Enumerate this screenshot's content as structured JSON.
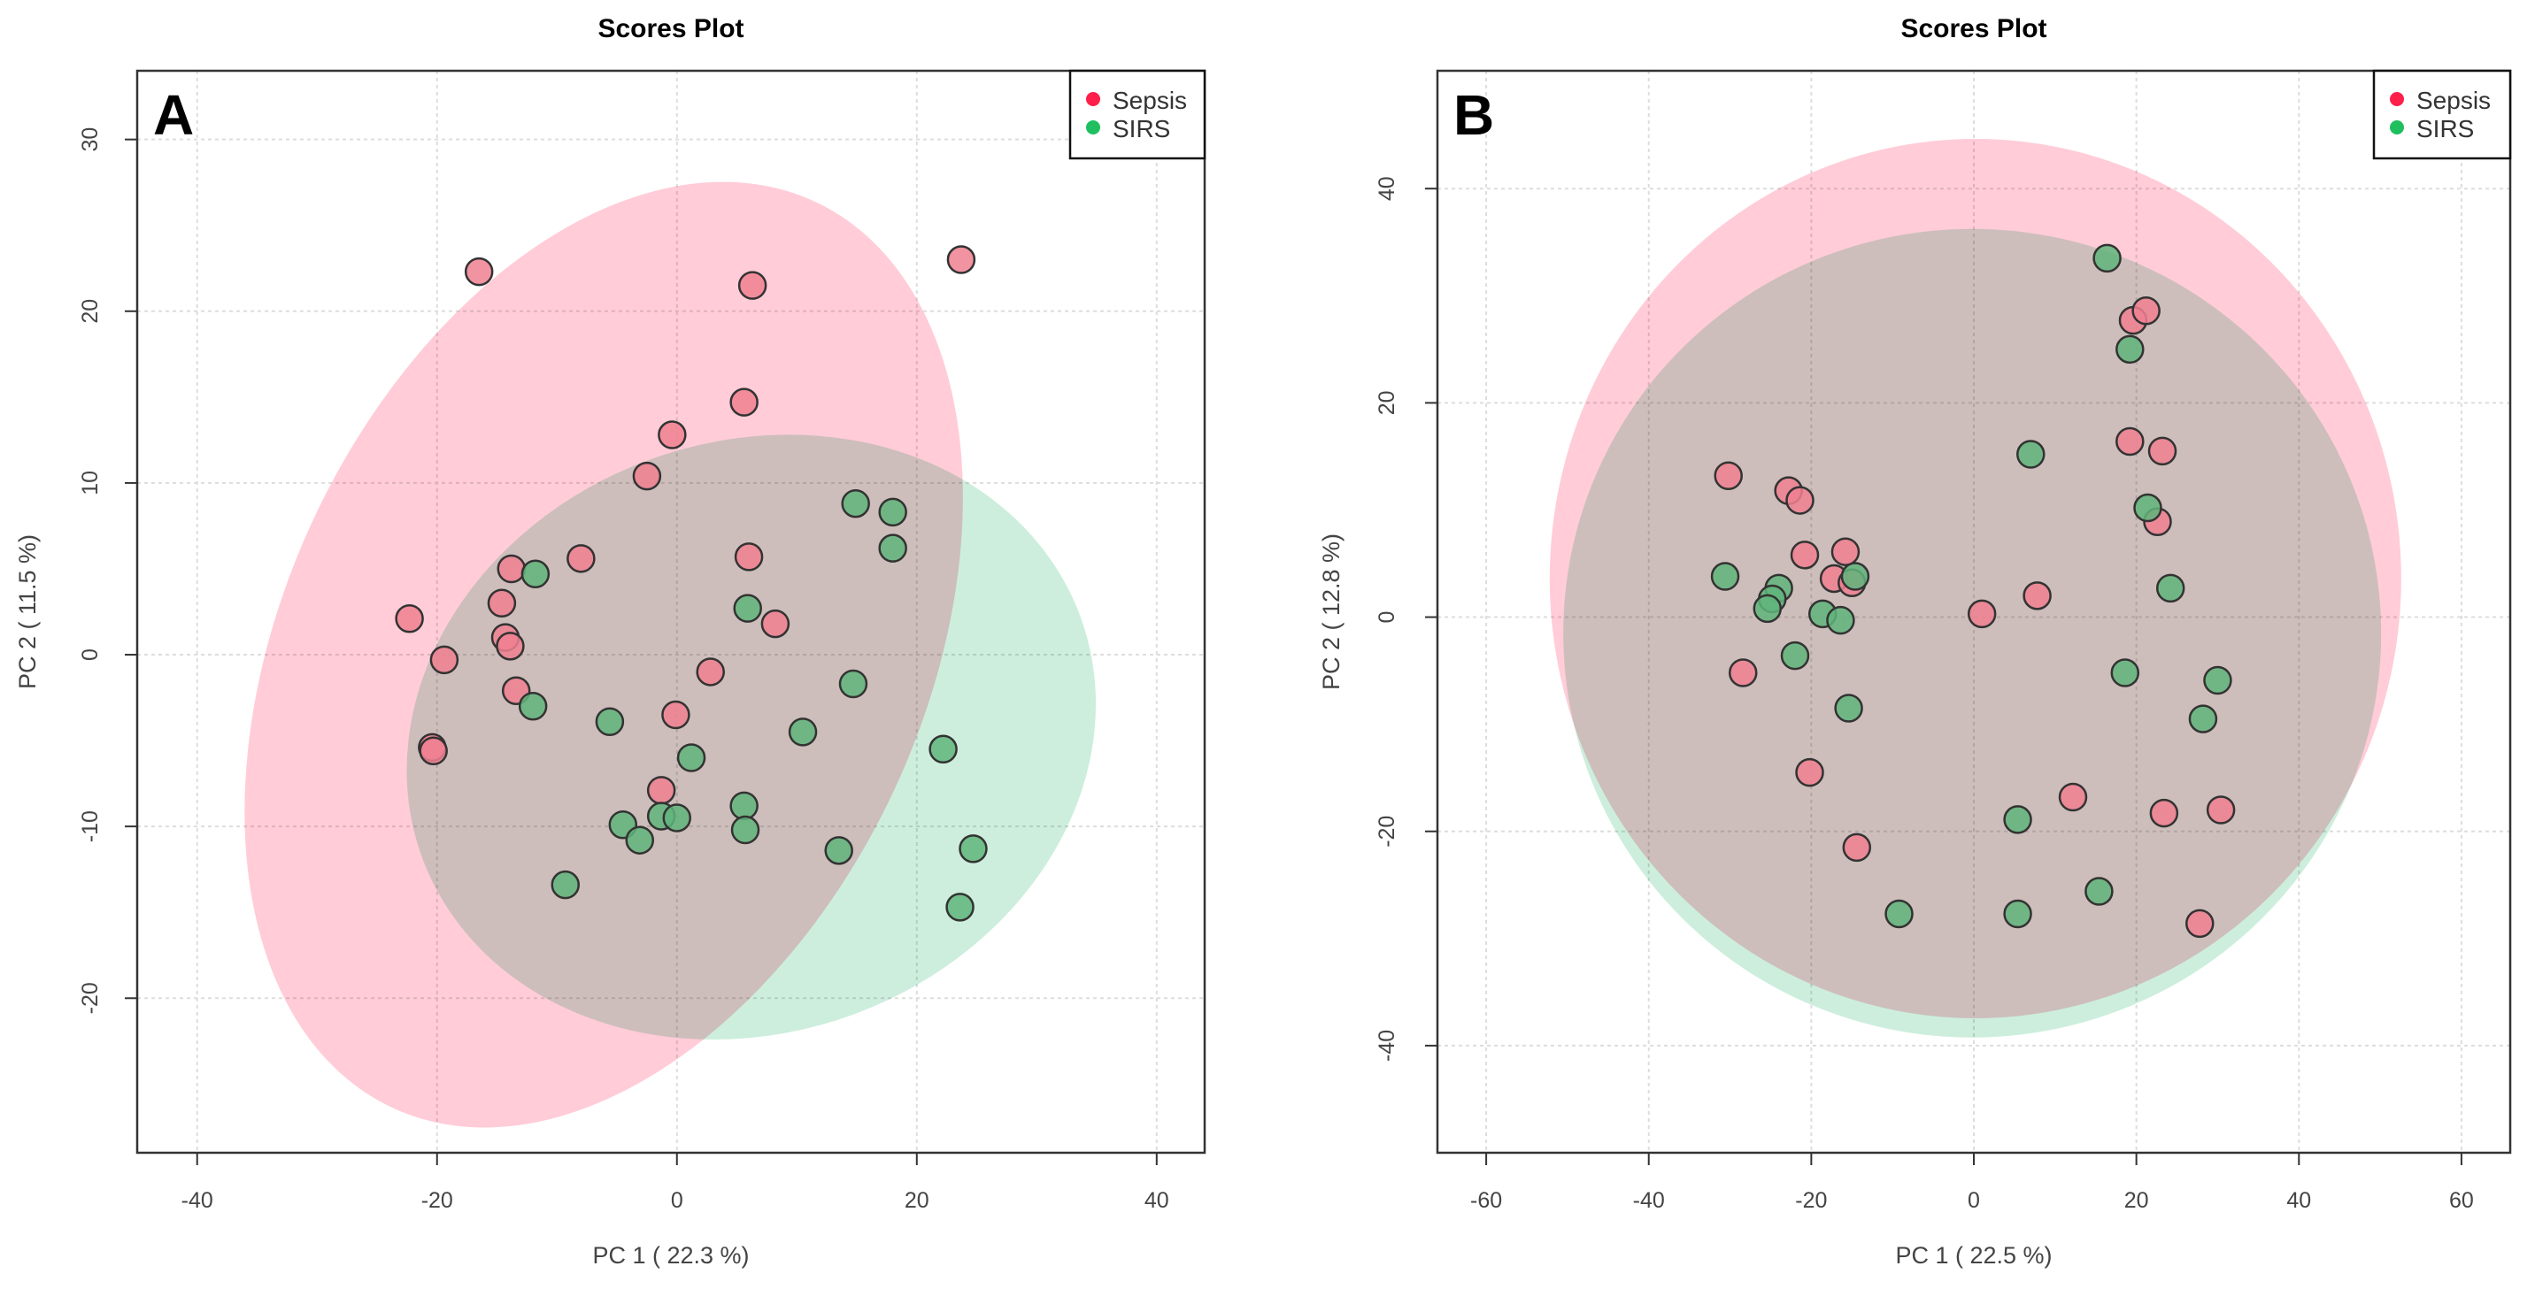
{
  "colors": {
    "sepsis": "#ff1f4b",
    "sirs": "#1fbf5f",
    "sepsis_fill": "#ffccd8",
    "sirs_fill": "#cdeedd",
    "sepsis_point": "#f08090",
    "sirs_point": "#5fb57a"
  },
  "chart_data": [
    {
      "type": "scatter",
      "panel": "A",
      "title": "Scores Plot",
      "xlabel": "PC 1 ( 22.3 %)",
      "ylabel": "PC 2 ( 11.5 %)",
      "xlim": [
        -45,
        44
      ],
      "ylim": [
        -29,
        34
      ],
      "xticks": [
        -40,
        -20,
        0,
        20,
        40
      ],
      "yticks": [
        -20,
        -10,
        0,
        10,
        20,
        30
      ],
      "grid": true,
      "legend_position": "top-right",
      "legend": [
        "Sepsis",
        "SIRS"
      ],
      "ellipse_centers": {
        "Sepsis": [
          -6.1,
          0
        ],
        "SIRS": [
          6.2,
          -4.8
        ]
      },
      "series": [
        {
          "name": "Sepsis",
          "points": [
            [
              -16.5,
              22.3
            ],
            [
              6.3,
              21.5
            ],
            [
              23.7,
              23
            ],
            [
              5.6,
              14.7
            ],
            [
              -0.4,
              12.8
            ],
            [
              -2.5,
              10.4
            ],
            [
              -8,
              5.6
            ],
            [
              -13.8,
              5
            ],
            [
              6,
              5.7
            ],
            [
              -22.3,
              2.1
            ],
            [
              -14.6,
              3
            ],
            [
              -14.3,
              1
            ],
            [
              -13.9,
              0.5
            ],
            [
              -19.4,
              -0.3
            ],
            [
              -13.4,
              -2.1
            ],
            [
              8.2,
              1.8
            ],
            [
              2.8,
              -1
            ],
            [
              -0.1,
              -3.5
            ],
            [
              -20.4,
              -5.4
            ],
            [
              -20.3,
              -5.6
            ],
            [
              -1.3,
              -7.9
            ]
          ]
        },
        {
          "name": "SIRS",
          "points": [
            [
              -11.8,
              4.7
            ],
            [
              14.9,
              8.8
            ],
            [
              18,
              8.3
            ],
            [
              18,
              6.2
            ],
            [
              5.9,
              2.7
            ],
            [
              -12,
              -3
            ],
            [
              14.7,
              -1.7
            ],
            [
              -5.6,
              -3.9
            ],
            [
              10.5,
              -4.5
            ],
            [
              1.2,
              -6
            ],
            [
              22.2,
              -5.5
            ],
            [
              5.6,
              -8.8
            ],
            [
              5.7,
              -10.2
            ],
            [
              -4.5,
              -9.9
            ],
            [
              -3.1,
              -10.8
            ],
            [
              -1.3,
              -9.4
            ],
            [
              0,
              -9.5
            ],
            [
              13.5,
              -11.4
            ],
            [
              24.7,
              -11.3
            ],
            [
              23.6,
              -14.7
            ],
            [
              -9.3,
              -13.4
            ]
          ]
        }
      ]
    },
    {
      "type": "scatter",
      "panel": "B",
      "title": "Scores Plot",
      "xlabel": "PC 1 ( 22.5 %)",
      "ylabel": "PC 2 ( 12.8 %)",
      "xlim": [
        -66,
        66
      ],
      "ylim": [
        -50,
        51
      ],
      "xticks": [
        -60,
        -40,
        -20,
        0,
        20,
        40,
        60
      ],
      "yticks": [
        -40,
        -20,
        0,
        20,
        40
      ],
      "grid": true,
      "legend_position": "top-right",
      "legend": [
        "Sepsis",
        "SIRS"
      ],
      "ellipse_centers": {
        "Sepsis": [
          0.2,
          3.6
        ],
        "SIRS": [
          -0.2,
          -1.5
        ]
      },
      "series": [
        {
          "name": "Sepsis",
          "points": [
            [
              -30.2,
              13.2
            ],
            [
              -22.8,
              11.8
            ],
            [
              -21.4,
              10.9
            ],
            [
              -20.8,
              5.8
            ],
            [
              -15.8,
              6.1
            ],
            [
              -17.2,
              3.6
            ],
            [
              -15,
              3.2
            ],
            [
              -28.4,
              -5.2
            ],
            [
              -20.2,
              -14.5
            ],
            [
              -14.4,
              -21.5
            ],
            [
              1,
              0.3
            ],
            [
              7.8,
              2
            ],
            [
              12.2,
              -16.8
            ],
            [
              19.6,
              27.7
            ],
            [
              21.2,
              28.6
            ],
            [
              19.2,
              16.4
            ],
            [
              23.2,
              15.5
            ],
            [
              22.6,
              8.9
            ],
            [
              23.4,
              -18.3
            ],
            [
              30.4,
              -18
            ],
            [
              27.8,
              -28.6
            ]
          ]
        },
        {
          "name": "SIRS",
          "points": [
            [
              -30.6,
              3.8
            ],
            [
              -24,
              2.7
            ],
            [
              -24.8,
              1.7
            ],
            [
              -25.4,
              0.8
            ],
            [
              -18.6,
              0.3
            ],
            [
              -16.4,
              -0.3
            ],
            [
              -14.6,
              3.8
            ],
            [
              -22,
              -3.6
            ],
            [
              -15.4,
              -8.5
            ],
            [
              -9.2,
              -27.7
            ],
            [
              5.4,
              -18.9
            ],
            [
              5.4,
              -27.7
            ],
            [
              7,
              15.2
            ],
            [
              16.4,
              33.5
            ],
            [
              19.2,
              25
            ],
            [
              21.4,
              10.2
            ],
            [
              24.2,
              2.7
            ],
            [
              18.6,
              -5.2
            ],
            [
              30,
              -5.9
            ],
            [
              28.2,
              -9.5
            ],
            [
              15.4,
              -25.6
            ]
          ]
        }
      ]
    }
  ]
}
